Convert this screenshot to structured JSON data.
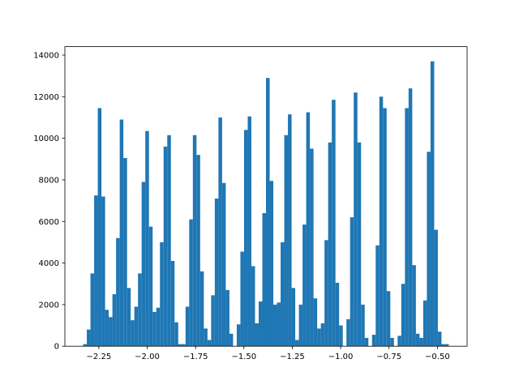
{
  "chart_data": {
    "type": "histogram",
    "color": "#1f77b4",
    "bins": [
      -2.331,
      -2.3121,
      -2.2932,
      -2.2743,
      -2.2554,
      -2.2365,
      -2.2176,
      -2.1987,
      -2.1798,
      -2.1609,
      -2.142,
      -2.1231,
      -2.1042,
      -2.0853,
      -2.0664,
      -2.0475,
      -2.0286,
      -2.0097,
      -1.9908,
      -1.9719,
      -1.953,
      -1.9341,
      -1.9152,
      -1.8963,
      -1.8774,
      -1.8585,
      -1.8396,
      -1.8207,
      -1.8018,
      -1.7829,
      -1.764,
      -1.7451,
      -1.7262,
      -1.7073,
      -1.6884,
      -1.6695,
      -1.6506,
      -1.6317,
      -1.6128,
      -1.5939,
      -1.575,
      -1.5561,
      -1.5372,
      -1.5183,
      -1.4994,
      -1.4805,
      -1.4616,
      -1.4427,
      -1.4238,
      -1.4049,
      -1.386,
      -1.3671,
      -1.3482,
      -1.3293,
      -1.3104,
      -1.2915,
      -1.2726,
      -1.2537,
      -1.2348,
      -1.2159,
      -1.197,
      -1.1781,
      -1.1592,
      -1.1403,
      -1.1214,
      -1.1025,
      -1.0836,
      -1.0647,
      -1.0458,
      -1.0269,
      -1.008,
      -0.9891,
      -0.9702,
      -0.9513,
      -0.9324,
      -0.9135,
      -0.8946,
      -0.8757,
      -0.8568,
      -0.8379,
      -0.819,
      -0.8001,
      -0.7812,
      -0.7623,
      -0.7434,
      -0.7245,
      -0.7056,
      -0.6867,
      -0.6678,
      -0.6489,
      -0.63,
      -0.6111,
      -0.5922,
      -0.5733,
      -0.5544,
      -0.5355,
      -0.5166,
      -0.4977,
      -0.4788,
      -0.4599,
      -0.441
    ],
    "values": [
      100,
      800,
      3500,
      7250,
      11450,
      7200,
      1750,
      1400,
      2500,
      5200,
      10900,
      9050,
      2800,
      1250,
      1900,
      3500,
      7900,
      10350,
      5750,
      1650,
      1850,
      5000,
      9600,
      10150,
      4100,
      1150,
      100,
      100,
      1900,
      6100,
      10150,
      9200,
      3600,
      850,
      300,
      2450,
      7100,
      11000,
      7850,
      2700,
      600,
      0,
      1050,
      4550,
      10400,
      11050,
      3850,
      1100,
      2150,
      6400,
      12900,
      7950,
      2000,
      2100,
      5000,
      10150,
      11150,
      2800,
      300,
      2000,
      5850,
      11250,
      9500,
      2300,
      850,
      1100,
      5100,
      9800,
      11850,
      3050,
      1000,
      0,
      1300,
      6200,
      12200,
      9800,
      2000,
      400,
      0,
      550,
      4850,
      12000,
      11450,
      2650,
      400,
      0,
      500,
      3000,
      11450,
      12400,
      3900,
      600,
      400,
      2200,
      9350,
      13700,
      5600,
      700,
      100,
      100
    ],
    "xlim": [
      -2.4255,
      -0.3465
    ],
    "ylim": [
      0,
      14405
    ],
    "xticks": [
      {
        "value": -2.25,
        "label": "−2.25"
      },
      {
        "value": -2.0,
        "label": "−2.00"
      },
      {
        "value": -1.75,
        "label": "−1.75"
      },
      {
        "value": -1.5,
        "label": "−1.50"
      },
      {
        "value": -1.25,
        "label": "−1.25"
      },
      {
        "value": -1.0,
        "label": "−1.00"
      },
      {
        "value": -0.75,
        "label": "−0.75"
      },
      {
        "value": -0.5,
        "label": "−0.50"
      }
    ],
    "yticks": [
      0,
      2000,
      4000,
      6000,
      8000,
      10000,
      12000,
      14000
    ]
  }
}
